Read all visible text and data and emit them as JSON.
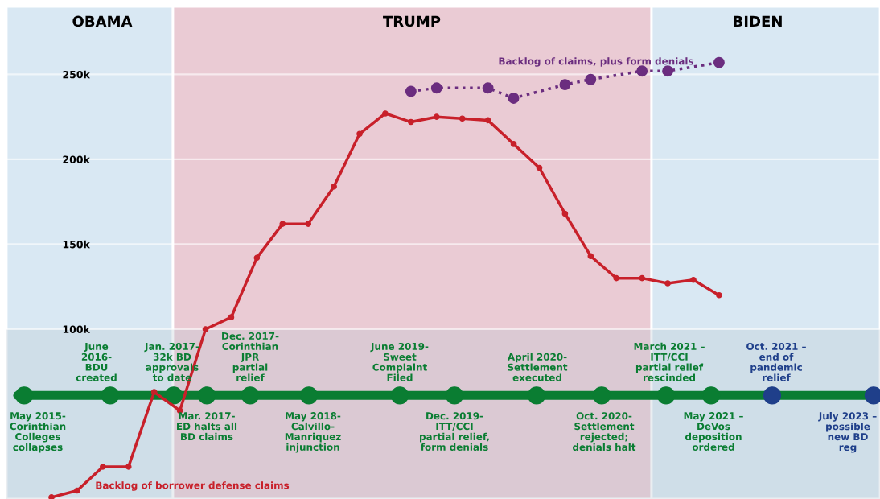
{
  "chart_data": {
    "type": "line",
    "categories": [
      null,
      null,
      null,
      null,
      null,
      null,
      null,
      null,
      null,
      null,
      null,
      null,
      null,
      null,
      null,
      null,
      null,
      null,
      null,
      null,
      null,
      null,
      null,
      null,
      null,
      null,
      null
    ],
    "series": [
      {
        "name": "Backlog of borrower defense claims",
        "color": "#c8202a",
        "marker": "circle",
        "values": [
          1,
          5,
          19,
          19,
          63,
          52,
          100,
          107,
          142,
          162,
          162,
          184,
          215,
          227,
          222,
          225,
          224,
          223,
          209,
          195,
          168,
          143,
          130,
          130,
          127,
          129,
          120
        ]
      },
      {
        "name": "Backlog of claims, plus form denials",
        "color": "#6b2d7f",
        "marker": "circle",
        "line_style": "dotted",
        "values": [
          null,
          null,
          null,
          null,
          null,
          null,
          null,
          null,
          null,
          null,
          null,
          null,
          null,
          null,
          240,
          242,
          null,
          242,
          236,
          null,
          244,
          247,
          null,
          252,
          252,
          null,
          257
        ]
      }
    ],
    "ylim": [
      0,
      290
    ],
    "yticks": [
      {
        "value": 100,
        "label": "100k"
      },
      {
        "value": 150,
        "label": "150k"
      },
      {
        "value": 200,
        "label": "200k"
      },
      {
        "value": 250,
        "label": "250k"
      }
    ],
    "tick_labels": "y",
    "grid": "y",
    "bands": [
      {
        "axis": "y",
        "from": 0,
        "to": 100,
        "color": "#b9c6d0"
      }
    ],
    "ref_lines": [
      {
        "axis": "y",
        "value": 61,
        "color": "#0a7d32"
      }
    ],
    "annotations": [
      "OBAMA",
      "TRUMP",
      "BIDEN",
      "May 2015-\nCorinthian\nColleges\ncollapses",
      "June\n2016-\nBDU\ncreated",
      "Jan. 2017-\n32k BD\napprovals\nto date",
      "Mar. 2017-\nED halts all\nBD claims",
      "Dec. 2017-\nCorinthian\nJPR\npartial\nrelief",
      "May 2018-\nCalvillo-\nManriquez\ninjunction",
      "June 2019-\nSweet\nComplaint\nFiled",
      "Dec. 2019-\nITT/CCI\npartial relief,\nform denials",
      "April 2020-\nSettlement\nexecuted",
      "Oct. 2020-\nSettlement\nrejected;\ndenials halt",
      "March 2021 –\nITT/CCI\npartial relief\nrescinded",
      "May 2021 –\nDeVos\ndeposition\nordered",
      "Oct. 2021 –\nend of\npandemic\nrelief",
      "July 2023 –\npossible\nnew BD\nreg"
    ]
  }
}
